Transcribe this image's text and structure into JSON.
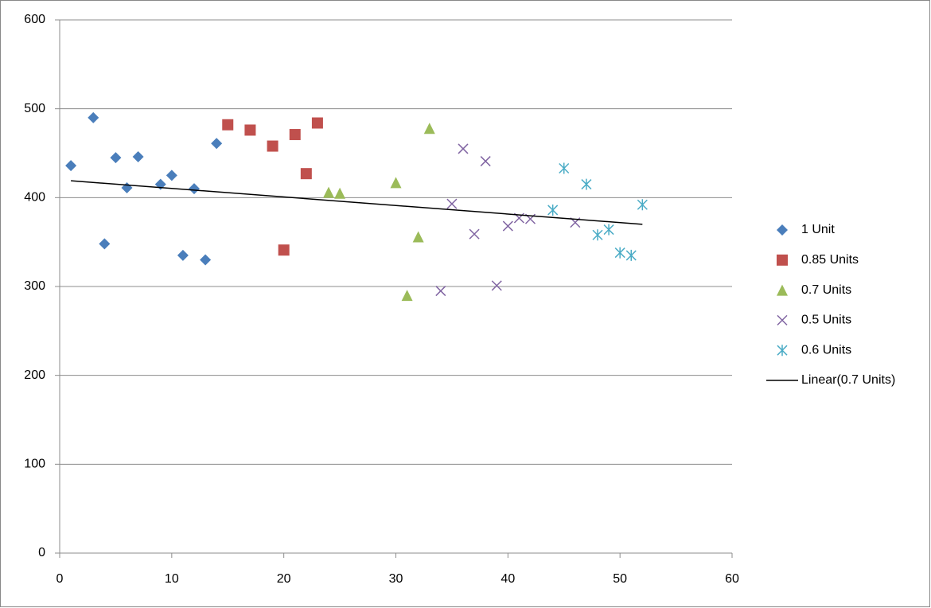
{
  "chart_data": {
    "type": "scatter",
    "xlim": [
      0,
      60
    ],
    "xticks": [
      0,
      10,
      20,
      30,
      40,
      50,
      60
    ],
    "ylim": [
      0,
      600
    ],
    "yticks": [
      0,
      100,
      200,
      300,
      400,
      500,
      600
    ],
    "grid": true,
    "legend": "right",
    "series": [
      {
        "name": "1 Unit",
        "color": "#4a7ebb",
        "marker": "diamond",
        "x": [
          1,
          3,
          4,
          5,
          6,
          7,
          9,
          10,
          11,
          12,
          13,
          14
        ],
        "values": [
          436,
          490,
          348,
          445,
          411,
          446,
          415,
          425,
          335,
          410,
          330,
          461
        ]
      },
      {
        "name": "0.85 Units",
        "color": "#c0504d",
        "marker": "square",
        "x": [
          15,
          17,
          19,
          20,
          21,
          22,
          23
        ],
        "values": [
          482,
          476,
          458,
          341,
          471,
          427,
          484
        ]
      },
      {
        "name": "0.7 Units",
        "color": "#9bbb59",
        "marker": "triangle",
        "x": [
          24,
          25,
          30,
          31,
          32,
          33
        ],
        "values": [
          406,
          405,
          417,
          290,
          356,
          478
        ]
      },
      {
        "name": "0.5 Units",
        "color": "#8064a2",
        "marker": "x",
        "x": [
          34,
          35,
          36,
          37,
          38,
          39,
          40,
          41,
          42,
          46
        ],
        "values": [
          295,
          393,
          455,
          359,
          441,
          301,
          368,
          377,
          376,
          372
        ]
      },
      {
        "name": "0.6 Units",
        "color": "#4bacc6",
        "marker": "star",
        "x": [
          44,
          45,
          47,
          48,
          49,
          50,
          51,
          52
        ],
        "values": [
          386,
          433,
          415,
          358,
          364,
          338,
          335,
          392
        ]
      },
      {
        "name": "Linear(0.7 Units)",
        "color": "#000000",
        "marker": "line",
        "x": [
          1,
          52
        ],
        "values": [
          419,
          370
        ]
      }
    ]
  }
}
